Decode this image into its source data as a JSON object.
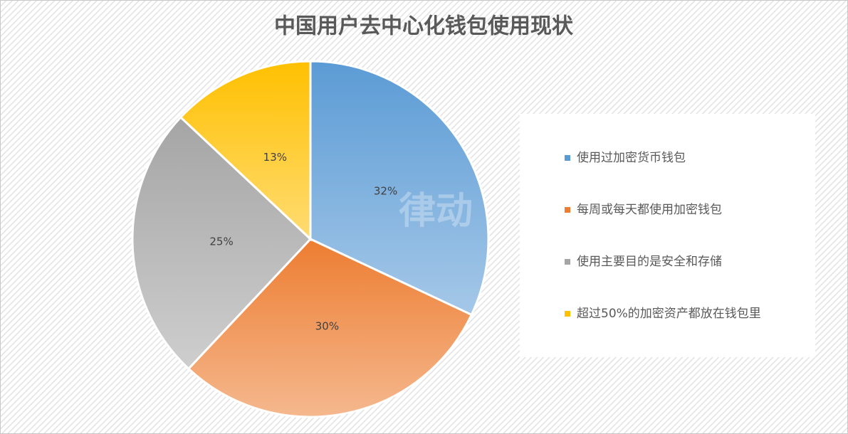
{
  "chart_data": {
    "type": "pie",
    "title": "中国用户去中心化钱包使用现状",
    "categories": [
      "使用过加密货币钱包",
      "每周或每天都使用加密钱包",
      "使用主要目的是安全和存储",
      "超过50%的加密资产都放在钱包里"
    ],
    "values": [
      32,
      30,
      25,
      13
    ],
    "value_labels": [
      "32%",
      "30%",
      "25%",
      "13%"
    ],
    "colors": [
      "#5b9bd5",
      "#ed7d31",
      "#a5a5a5",
      "#ffc000"
    ],
    "legend": "right",
    "watermark": "律动"
  }
}
